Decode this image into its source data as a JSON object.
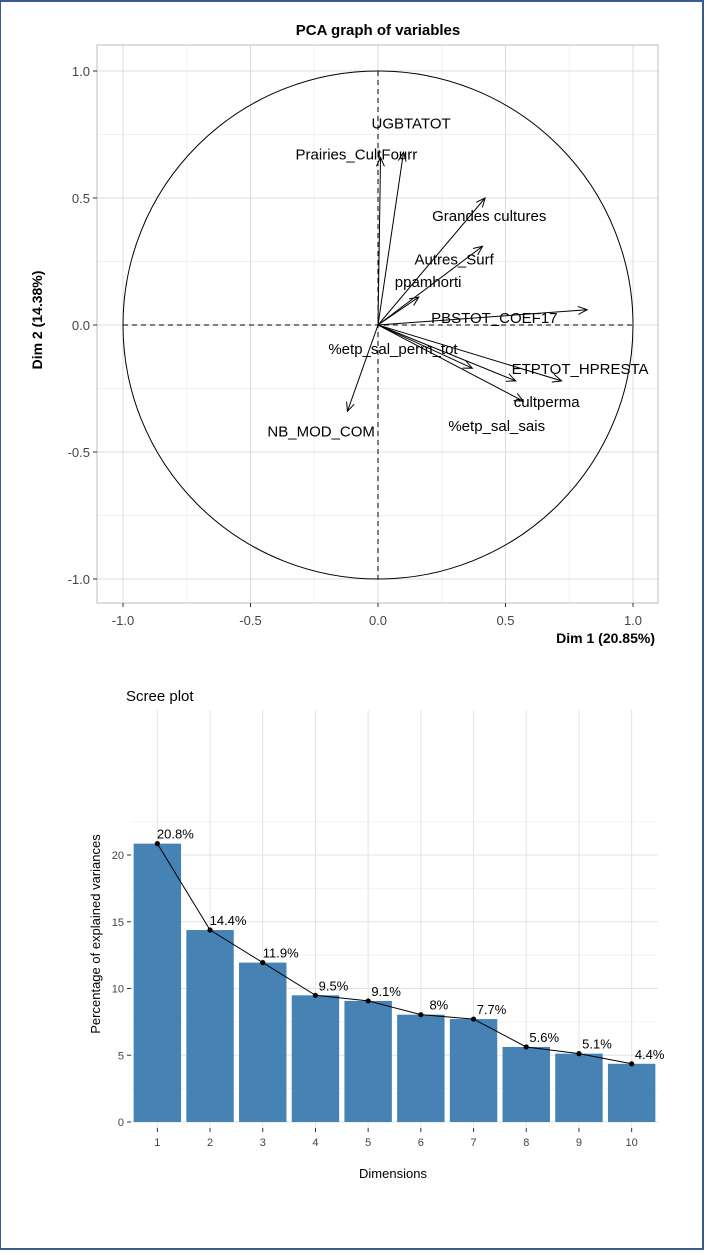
{
  "chart_data": [
    {
      "type": "scatter",
      "title": "PCA graph of variables",
      "xlabel": "Dim 1 (20.85%)",
      "ylabel": "Dim 2 (14.38%)",
      "xlim": [
        -1.0,
        1.0
      ],
      "ylim": [
        -1.0,
        1.0
      ],
      "x_ticks": [
        -1.0,
        -0.5,
        0.0,
        0.5,
        1.0
      ],
      "y_ticks": [
        -1.0,
        -0.5,
        0.0,
        0.5,
        1.0
      ],
      "x_tick_labels": [
        "-1.0",
        "-0.5",
        "0.0",
        "0.5",
        "1.0"
      ],
      "y_tick_labels": [
        "-1.0",
        "-0.5",
        "0.0",
        "0.5",
        "1.0"
      ],
      "grid": true,
      "variables": [
        {
          "name": "UGBTATOT",
          "x": 0.1,
          "y": 0.68
        },
        {
          "name": "Prairies_CultFourr",
          "x": 0.01,
          "y": 0.66
        },
        {
          "name": "Grandes cultures",
          "x": 0.42,
          "y": 0.5
        },
        {
          "name": "Autres_Surf",
          "x": 0.41,
          "y": 0.31
        },
        {
          "name": "ppamhorti",
          "x": 0.16,
          "y": 0.11
        },
        {
          "name": "PBSTOT_COEF17",
          "x": 0.82,
          "y": 0.06
        },
        {
          "name": "%etp_sal_perm_tot",
          "x": 0.37,
          "y": -0.17
        },
        {
          "name": "ETPTOT_HPRESTA",
          "x": 0.72,
          "y": -0.22
        },
        {
          "name": "cultperma",
          "x": 0.54,
          "y": -0.22
        },
        {
          "name": "%etp_sal_sais",
          "x": 0.57,
          "y": -0.3
        },
        {
          "name": "NB_MOD_COM",
          "x": -0.12,
          "y": -0.34
        }
      ]
    },
    {
      "type": "bar",
      "title": "Scree plot",
      "xlabel": "Dimensions",
      "ylabel": "Percentage of explained variances",
      "categories": [
        "1",
        "2",
        "3",
        "4",
        "5",
        "6",
        "7",
        "8",
        "9",
        "10"
      ],
      "values": [
        20.85,
        14.38,
        11.94,
        9.49,
        9.07,
        8.04,
        7.71,
        5.62,
        5.12,
        4.36
      ],
      "value_labels": [
        "20.8%",
        "14.4%",
        "11.9%",
        "9.5%",
        "9.1%",
        "8%",
        "7.7%",
        "5.6%",
        "5.1%",
        "4.4%"
      ],
      "ylim": [
        0,
        22.5
      ],
      "y_ticks": [
        0,
        5,
        10,
        15,
        20
      ],
      "y_tick_labels": [
        "0",
        "5",
        "10",
        "15",
        "20"
      ],
      "grid": true,
      "bar_color": "#4682B4",
      "line_color": "#000000"
    }
  ]
}
